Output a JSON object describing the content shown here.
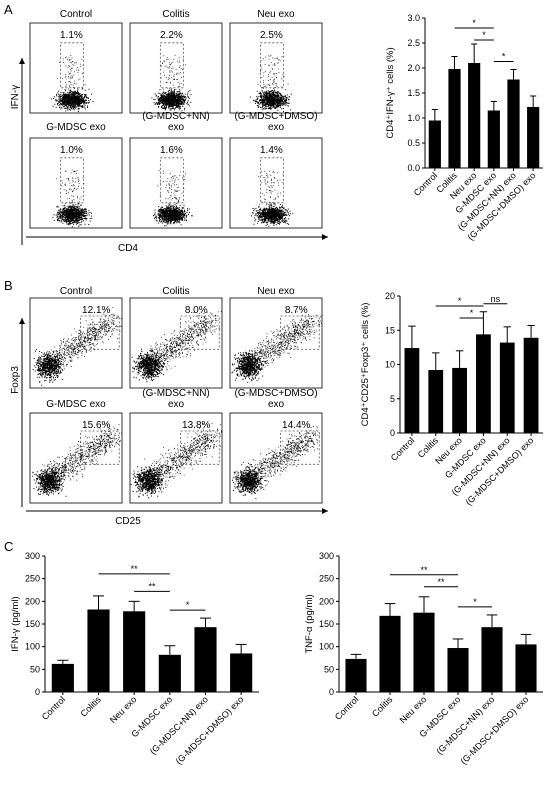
{
  "panel_letters": [
    "A",
    "B",
    "C"
  ],
  "flow_panels": [
    {
      "y_axis_label": "IFN-γ",
      "x_axis_label": "CD4",
      "cells": [
        {
          "name": "Control",
          "pct": "1.1%"
        },
        {
          "name": "Colitis",
          "pct": "2.2%"
        },
        {
          "name": "Neu exo",
          "pct": "2.5%"
        },
        {
          "name": "G-MDSC exo",
          "pct": "1.0%"
        },
        {
          "name": "(G-MDSC+NN)\nexo",
          "pct": "1.6%"
        },
        {
          "name": "(G-MDSC+DMSO)\nexo",
          "pct": "1.4%"
        }
      ]
    },
    {
      "y_axis_label": "Foxp3",
      "x_axis_label": "CD25",
      "cells": [
        {
          "name": "Control",
          "pct": "12.1%"
        },
        {
          "name": "Colitis",
          "pct": "8.0%"
        },
        {
          "name": "Neu exo",
          "pct": "8.7%"
        },
        {
          "name": "G-MDSC exo",
          "pct": "15.6%"
        },
        {
          "name": "(G-MDSC+NN)\nexo",
          "pct": "13.8%"
        },
        {
          "name": "(G-MDSC+DMSO)\nexo",
          "pct": "14.4%"
        }
      ]
    }
  ],
  "chart_data": [
    {
      "type": "bar",
      "categories": [
        "Control",
        "Colitis",
        "Neu exo",
        "G-MDSC exo",
        "(G-MDSC+NN) exo",
        "(G-MDSC+DMSO) exo"
      ],
      "values": [
        0.95,
        1.98,
        2.1,
        1.15,
        1.77,
        1.22
      ],
      "errors": [
        0.22,
        0.25,
        0.38,
        0.18,
        0.2,
        0.22
      ],
      "ylabel": "CD4⁺IFN-γ⁺ cells (%)",
      "ylim": [
        0,
        3
      ],
      "yticks": [
        "0.0",
        "0.5",
        "1.0",
        "1.5",
        "2.0",
        "2.5",
        "3.0"
      ],
      "comparisons": [
        {
          "from": 1,
          "to": 3,
          "label": "*"
        },
        {
          "from": 2,
          "to": 3,
          "label": "*"
        },
        {
          "from": 3,
          "to": 4,
          "label": "*"
        }
      ]
    },
    {
      "type": "bar",
      "categories": [
        "Control",
        "Colitis",
        "Neu exo",
        "G-MDSC exo",
        "(G-MDSC+NN) exo",
        "(G-MDSC+DMSO) exo"
      ],
      "values": [
        12.4,
        9.2,
        9.5,
        14.4,
        13.2,
        13.9
      ],
      "errors": [
        3.2,
        2.5,
        2.5,
        3.3,
        2.3,
        1.8
      ],
      "ylabel": "CD4⁺CD25⁺Foxp3⁺ cells (%)",
      "ylim": [
        0,
        20
      ],
      "yticks": [
        "0",
        "5",
        "10",
        "15",
        "20"
      ],
      "comparisons": [
        {
          "from": 1,
          "to": 3,
          "label": "*"
        },
        {
          "from": 2,
          "to": 3,
          "label": "*"
        },
        {
          "from": 3,
          "to": 4,
          "label": "ns"
        }
      ]
    },
    {
      "type": "bar",
      "categories": [
        "Control",
        "Colitis",
        "Neu exo",
        "G-MDSC exo",
        "(G-MDSC+NN) exo",
        "(G-MDSC+DMSO) exo"
      ],
      "values": [
        62,
        182,
        178,
        82,
        143,
        85
      ],
      "errors": [
        8,
        30,
        22,
        20,
        20,
        20
      ],
      "ylabel": "IFN-γ (pg/ml)",
      "ylim": [
        0,
        300
      ],
      "yticks": [
        "0",
        "50",
        "100",
        "150",
        "200",
        "250",
        "300"
      ],
      "comparisons": [
        {
          "from": 1,
          "to": 3,
          "label": "**"
        },
        {
          "from": 2,
          "to": 3,
          "label": "**"
        },
        {
          "from": 3,
          "to": 4,
          "label": "*"
        }
      ]
    },
    {
      "type": "bar",
      "categories": [
        "Control",
        "Colitis",
        "Neu exo",
        "G-MDSC exo",
        "(G-MDSC+NN) exo",
        "(G-MDSC+DMSO) exo"
      ],
      "values": [
        73,
        168,
        175,
        97,
        143,
        105
      ],
      "errors": [
        10,
        27,
        35,
        20,
        27,
        22
      ],
      "ylabel": "TNF-α (pg/ml)",
      "ylim": [
        0,
        300
      ],
      "yticks": [
        "0",
        "50",
        "100",
        "150",
        "200",
        "250",
        "300"
      ],
      "comparisons": [
        {
          "from": 1,
          "to": 3,
          "label": "**"
        },
        {
          "from": 2,
          "to": 3,
          "label": "**"
        },
        {
          "from": 3,
          "to": 4,
          "label": "*"
        }
      ]
    }
  ]
}
